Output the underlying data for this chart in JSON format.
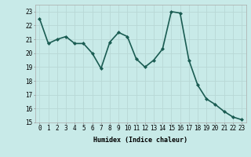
{
  "x": [
    0,
    1,
    2,
    3,
    4,
    5,
    6,
    7,
    8,
    9,
    10,
    11,
    12,
    13,
    14,
    15,
    16,
    17,
    18,
    19,
    20,
    21,
    22,
    23
  ],
  "y": [
    22.5,
    20.7,
    21.0,
    21.2,
    20.7,
    20.7,
    20.0,
    18.9,
    20.8,
    21.5,
    21.2,
    19.6,
    19.0,
    19.5,
    20.3,
    23.0,
    22.9,
    19.5,
    17.7,
    16.7,
    16.3,
    15.8,
    15.4,
    15.2
  ],
  "line_color": "#1a5c52",
  "marker": "D",
  "marker_size": 2,
  "bg_color": "#c8eae8",
  "grid_color": "#b8d8d5",
  "xlabel": "Humidex (Indice chaleur)",
  "ylim": [
    15,
    23.5
  ],
  "xlim": [
    -0.5,
    23.5
  ],
  "yticks": [
    15,
    16,
    17,
    18,
    19,
    20,
    21,
    22,
    23
  ],
  "xticks": [
    0,
    1,
    2,
    3,
    4,
    5,
    6,
    7,
    8,
    9,
    10,
    11,
    12,
    13,
    14,
    15,
    16,
    17,
    18,
    19,
    20,
    21,
    22,
    23
  ],
  "xlabel_fontsize": 6.0,
  "tick_fontsize": 5.5,
  "line_width": 1.2
}
